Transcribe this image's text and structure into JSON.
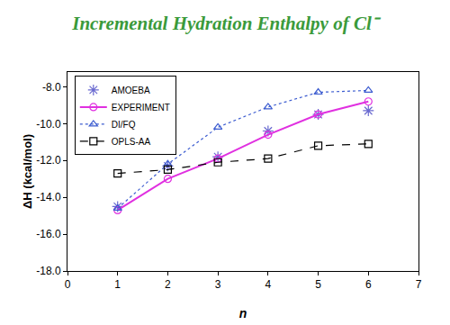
{
  "chart_data": {
    "type": "line",
    "title": "Incremental Hydration Enthalpy of Cl⁻",
    "x_label": "n",
    "y_label": "ΔH (kcal/mol)",
    "x": [
      1,
      2,
      3,
      4,
      5,
      6
    ],
    "series": [
      {
        "name": "AMOEBA",
        "type": "scatter",
        "color": "#6a6ad0",
        "marker": "asterisk-open",
        "values": [
          -14.5,
          -12.3,
          -11.8,
          -10.4,
          -9.5,
          -9.3
        ]
      },
      {
        "name": "EXPERIMENT",
        "type": "line",
        "color": "#e030e0",
        "marker": "circle-open",
        "line_style": "solid",
        "values": [
          -14.7,
          -13.0,
          -11.9,
          -10.6,
          -9.5,
          -8.8
        ]
      },
      {
        "name": "DI/FQ",
        "type": "line",
        "color": "#3c5cd0",
        "marker": "triangle-up-open",
        "line_style": "dotted",
        "values": [
          -14.6,
          -12.2,
          -10.2,
          -9.1,
          -8.3,
          -8.2
        ]
      },
      {
        "name": "OPLS-AA",
        "type": "line",
        "color": "#000000",
        "marker": "square-open",
        "line_style": "dashed",
        "values": [
          -12.7,
          -12.5,
          -12.1,
          -11.9,
          -11.2,
          -11.1
        ]
      }
    ],
    "xlim": [
      0,
      7
    ],
    "xticks": [
      0,
      1,
      2,
      3,
      4,
      5,
      6,
      7
    ],
    "ylim": [
      -18,
      -7.2
    ],
    "yticks": [
      {
        "value": -18,
        "label": "-18.0"
      },
      {
        "value": -16,
        "label": "-16.0"
      },
      {
        "value": -14,
        "label": "-14.0"
      },
      {
        "value": -12,
        "label": "-12.0"
      },
      {
        "value": -10,
        "label": "-10.0"
      },
      {
        "value": -8,
        "label": "-8.0"
      }
    ],
    "grid": false,
    "legend": "top-left"
  }
}
